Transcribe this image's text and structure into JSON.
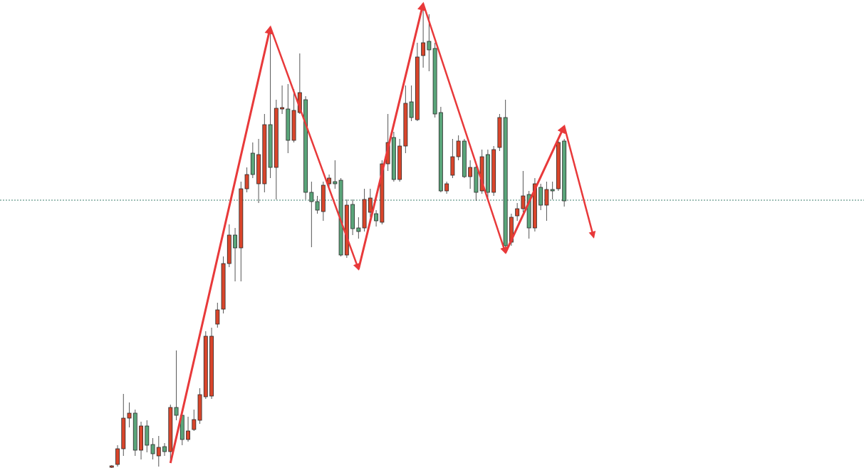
{
  "chart_data": {
    "type": "candlestick",
    "xlim": [
      -19,
      128
    ],
    "ylim": [
      0,
      657
    ],
    "open": [
      1,
      5,
      27,
      70,
      77,
      25,
      59,
      33,
      17,
      30,
      23,
      85,
      74,
      40,
      54,
      67,
      100,
      101,
      202,
      223,
      287,
      327,
      309,
      392,
      442,
      399,
      399,
      482,
      422,
      504,
      504,
      460,
      499,
      517,
      387,
      374,
      360,
      399,
      402,
      404,
      299,
      370,
      337,
      337,
      359,
      357,
      345,
      427,
      464,
      405,
      452,
      514,
      489,
      579,
      599,
      589,
      499,
      389,
      411,
      437,
      459,
      409,
      422,
      389,
      440,
      387,
      450,
      492,
      317,
      354,
      364,
      384,
      337,
      394,
      369,
      391,
      392,
      459
    ],
    "high": [
      4,
      32,
      104,
      92,
      82,
      65,
      67,
      42,
      45,
      35,
      89,
      165,
      82,
      72,
      82,
      112,
      192,
      197,
      232,
      297,
      342,
      337,
      402,
      422,
      457,
      462,
      497,
      617,
      517,
      537,
      539,
      532,
      582,
      522,
      402,
      382,
      402,
      412,
      432,
      407,
      377,
      377,
      352,
      392,
      392,
      362,
      432,
      497,
      472,
      462,
      537,
      537,
      597,
      647,
      637,
      597,
      507,
      402,
      462,
      467,
      462,
      432,
      427,
      447,
      447,
      452,
      497,
      517,
      357,
      372,
      417,
      389,
      407,
      399,
      402,
      402,
      462,
      462
    ],
    "low": [
      0,
      2,
      17,
      57,
      17,
      12,
      22,
      12,
      2,
      17,
      7,
      67,
      32,
      37,
      52,
      62,
      97,
      97,
      197,
      217,
      282,
      262,
      262,
      387,
      407,
      372,
      387,
      407,
      377,
      497,
      442,
      457,
      497,
      377,
      310,
      357,
      347,
      395,
      392,
      297,
      295,
      327,
      322,
      332,
      352,
      339,
      342,
      417,
      402,
      402,
      442,
      487,
      487,
      562,
      557,
      492,
      387,
      385,
      407,
      432,
      407,
      392,
      375,
      385,
      377,
      382,
      445,
      302,
      312,
      347,
      359,
      322,
      332,
      362,
      347,
      377,
      389,
      367
    ],
    "close": [
      3,
      27,
      70,
      77,
      25,
      59,
      32,
      20,
      29,
      23,
      85,
      74,
      40,
      52,
      68,
      103,
      185,
      185,
      222,
      287,
      327,
      309,
      392,
      412,
      412,
      440,
      482,
      422,
      505,
      506,
      460,
      502,
      527,
      387,
      374,
      362,
      397,
      407,
      399,
      299,
      369,
      336,
      332,
      377,
      379,
      347,
      427,
      457,
      405,
      452,
      512,
      492,
      577,
      597,
      587,
      497,
      389,
      399,
      437,
      459,
      409,
      422,
      387,
      437,
      387,
      447,
      492,
      312,
      352,
      364,
      382,
      337,
      399,
      369,
      391,
      389,
      457,
      375
    ],
    "up_color": "#d9452b",
    "down_color": "#5aa57a",
    "outline_color": "#2b2b2b",
    "reference_line": 376,
    "reference_color": "#3f7f6e",
    "zigzag": {
      "x": [
        10,
        27,
        42,
        53,
        67,
        77,
        82
      ],
      "y": [
        7,
        619,
        279,
        652,
        302,
        480,
        324
      ],
      "color": "#e8393a"
    }
  }
}
